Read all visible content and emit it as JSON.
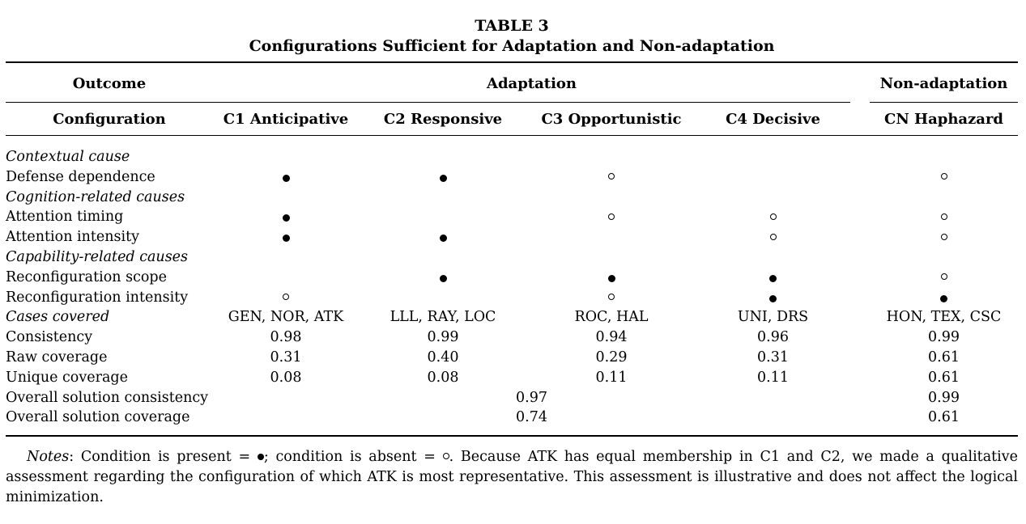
{
  "table": {
    "number": "TABLE 3",
    "title": "Configurations Sufficient for Adaptation and Non-adaptation",
    "header": {
      "outcome_label": "Outcome",
      "adaptation_label": "Adaptation",
      "nonadaptation_label": "Non-adaptation",
      "configuration_label": "Configuration",
      "columns": [
        "C1 Anticipative",
        "C2 Responsive",
        "C3 Opportunistic",
        "C4 Decisive",
        "CN Haphazard"
      ]
    },
    "symbols": {
      "present": "filled-circle",
      "absent": "hollow-circle"
    },
    "rows": [
      {
        "label": "Contextual cause",
        "section": true,
        "cells": [
          "",
          "",
          "",
          "",
          ""
        ]
      },
      {
        "label": "Defense dependence",
        "section": false,
        "cells": [
          "present",
          "present",
          "absent",
          "",
          "absent"
        ]
      },
      {
        "label": "Cognition-related causes",
        "section": true,
        "cells": [
          "",
          "",
          "",
          "",
          ""
        ]
      },
      {
        "label": "Attention timing",
        "section": false,
        "cells": [
          "present",
          "",
          "absent",
          "absent",
          "absent"
        ]
      },
      {
        "label": "Attention intensity",
        "section": false,
        "cells": [
          "present",
          "present",
          "",
          "absent",
          "absent"
        ]
      },
      {
        "label": "Capability-related causes",
        "section": true,
        "cells": [
          "",
          "",
          "",
          "",
          ""
        ]
      },
      {
        "label": "Reconfiguration scope",
        "section": false,
        "cells": [
          "",
          "present",
          "present",
          "present",
          "absent"
        ]
      },
      {
        "label": "Reconfiguration intensity",
        "section": false,
        "cells": [
          "absent",
          "",
          "absent",
          "present",
          "present"
        ]
      }
    ],
    "cases_covered": {
      "label": "Cases covered",
      "values": [
        "GEN, NOR, ATK",
        "LLL, RAY, LOC",
        "ROC, HAL",
        "UNI, DRS",
        "HON, TEX, CSC"
      ]
    },
    "consistency": {
      "label": "Consistency",
      "values": [
        "0.98",
        "0.99",
        "0.94",
        "0.96",
        "0.99"
      ]
    },
    "raw_coverage": {
      "label": "Raw coverage",
      "values": [
        "0.31",
        "0.40",
        "0.29",
        "0.31",
        "0.61"
      ]
    },
    "unique_coverage": {
      "label": "Unique coverage",
      "values": [
        "0.08",
        "0.08",
        "0.11",
        "0.11",
        "0.61"
      ]
    },
    "overall_consistency": {
      "label": "Overall solution consistency",
      "adaptation": "0.97",
      "nonadaptation": "0.99"
    },
    "overall_coverage": {
      "label": "Overall solution coverage",
      "adaptation": "0.74",
      "nonadaptation": "0.61"
    },
    "notes": {
      "lead": "Notes",
      "part1": ": Condition is present = ",
      "part2": "; condition is absent = ",
      "part3": ". Because ATK has equal membership in C1 and C2, we made a qualitative assessment regarding the configuration of which ATK is most representative. This assessment is illustrative and does not affect the logical minimization."
    }
  }
}
